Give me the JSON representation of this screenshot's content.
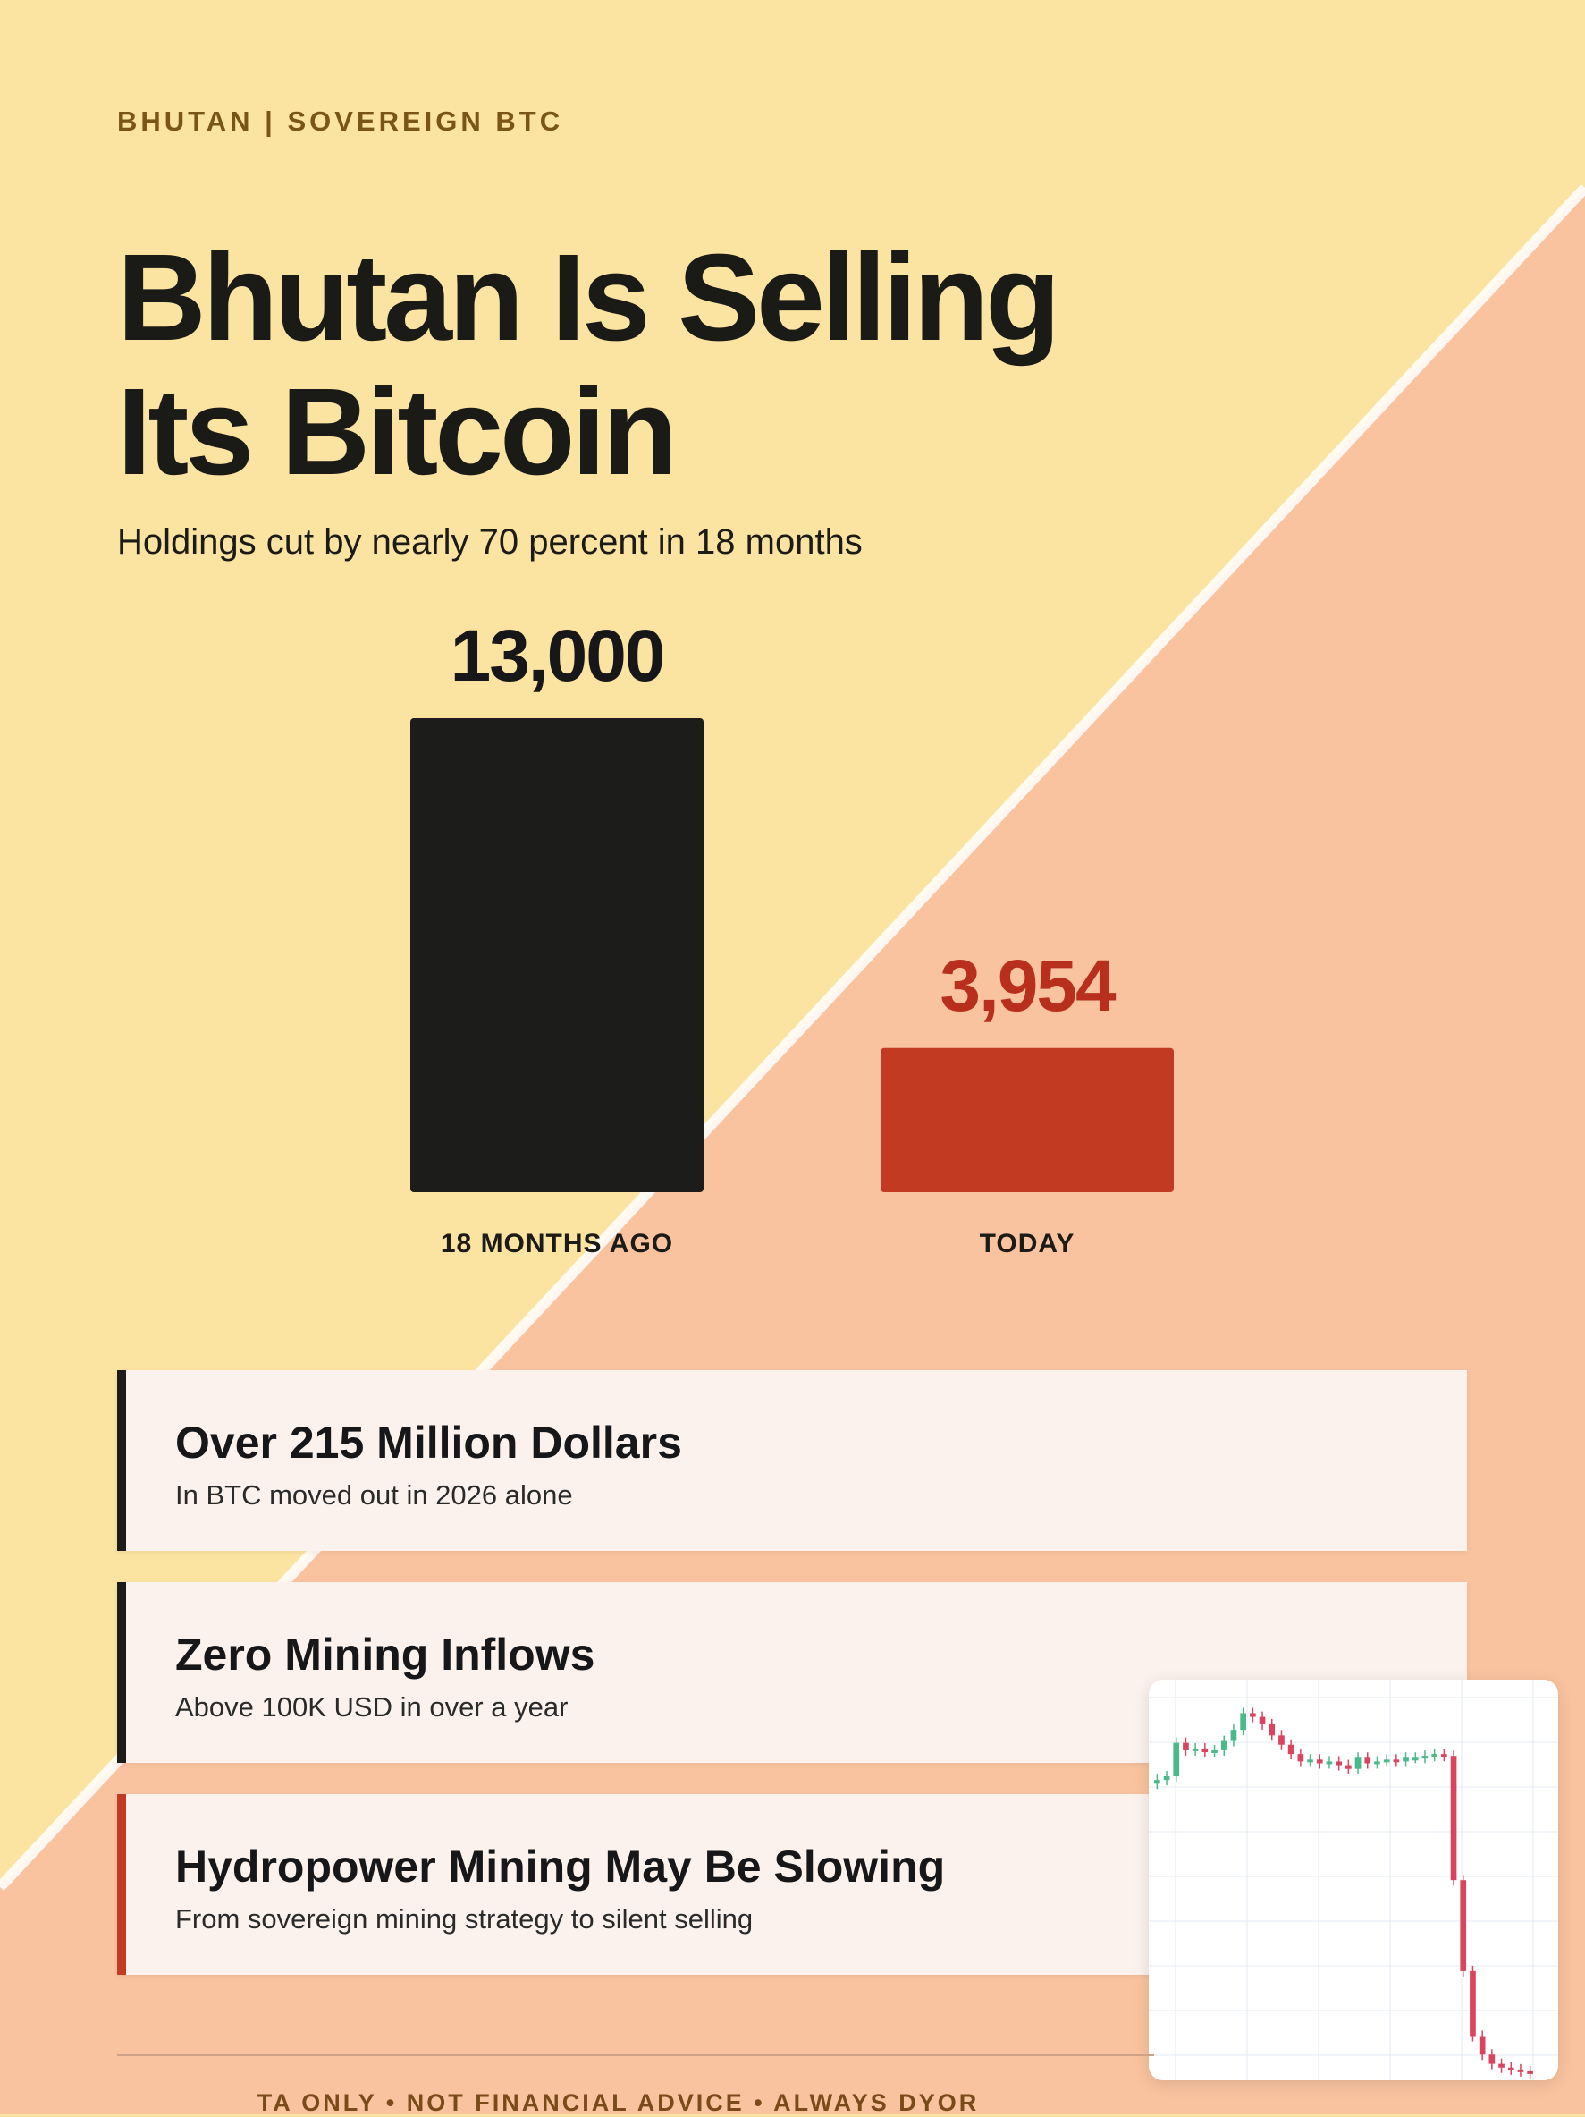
{
  "kicker": "BHUTAN | SOVEREIGN BTC",
  "title_line1": "Bhutan Is Selling",
  "title_line2": "Its Bitcoin",
  "subtitle": "Holdings cut by nearly 70 percent in 18 months",
  "colors": {
    "background_top": "#fbe3a1",
    "background_bottom": "#f9c39f",
    "bar_past": "#1c1c1a",
    "bar_today": "#c23a22",
    "value_past": "#17171a",
    "value_today": "#b8301d",
    "candle_up": "#4cb98a",
    "candle_down": "#d9455f"
  },
  "chart_data": [
    {
      "type": "bar",
      "categories": [
        "18 MONTHS AGO",
        "TODAY"
      ],
      "values": [
        13000,
        3954
      ],
      "data_labels": [
        "13,000",
        "3,954"
      ],
      "ylim": [
        0,
        13000
      ],
      "grid": false,
      "legend": "none"
    },
    {
      "type": "line",
      "style": "candlestick",
      "grid": true,
      "x": [
        1,
        2,
        3,
        4,
        5,
        6,
        7,
        8,
        9,
        10,
        11,
        12,
        13,
        14,
        15,
        16,
        17,
        18,
        19,
        20,
        21,
        22,
        23,
        24,
        25,
        26,
        27,
        28,
        29,
        30,
        31,
        32,
        33,
        34,
        35,
        36,
        37,
        38,
        39,
        40
      ],
      "values": [
        58,
        60,
        78,
        74,
        75,
        73,
        74,
        79,
        85,
        94,
        92,
        88,
        82,
        77,
        72,
        68,
        69,
        67,
        68,
        66,
        64,
        70,
        67,
        68,
        69,
        68,
        70,
        70,
        71,
        72,
        71,
        4,
        -45,
        -80,
        -90,
        -95,
        -97,
        -98,
        -99,
        -100
      ]
    }
  ],
  "cards": [
    {
      "title": "Over 215 Million Dollars",
      "subtitle": "In BTC moved out in 2026 alone"
    },
    {
      "title": "Zero Mining Inflows",
      "subtitle": "Above 100K USD in over a year"
    },
    {
      "title": "Hydropower Mining May Be Slowing",
      "subtitle": "From sovereign mining strategy to silent selling"
    }
  ],
  "footer": "TA ONLY • NOT FINANCIAL ADVICE • ALWAYS DYOR"
}
